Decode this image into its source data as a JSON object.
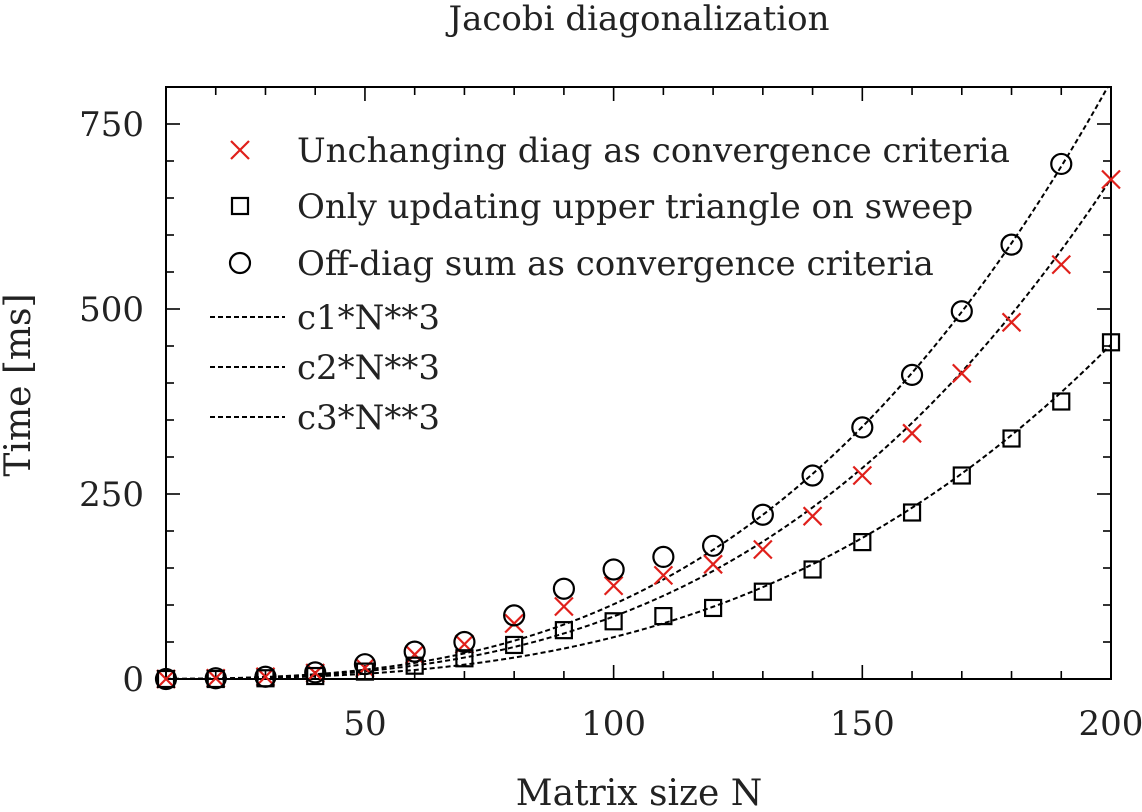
{
  "chart_data": {
    "type": "scatter",
    "title": "Jacobi diagonalization",
    "xlabel": "Matrix size N",
    "ylabel": "Time [ms]",
    "xlim": [
      10,
      200
    ],
    "ylim": [
      0,
      800
    ],
    "xticks": [
      "50",
      "100",
      "150",
      "200"
    ],
    "yticks": [
      "0",
      "250",
      "500",
      "750"
    ],
    "grid": false,
    "legend_position": "top-left",
    "series": [
      {
        "name": "Unchanging diag as convergence criteria",
        "marker": "x",
        "color": "#e0201b",
        "x": [
          10,
          20,
          30,
          40,
          50,
          60,
          70,
          80,
          90,
          100,
          110,
          120,
          130,
          140,
          150,
          160,
          170,
          180,
          190,
          200
        ],
        "y": [
          0,
          1,
          3,
          8,
          15,
          33,
          47,
          75,
          98,
          126,
          140,
          155,
          175,
          220,
          275,
          332,
          413,
          482,
          560,
          675
        ]
      },
      {
        "name": "Only updating upper triangle on sweep",
        "marker": "square",
        "color": "#000000",
        "x": [
          10,
          20,
          30,
          40,
          50,
          60,
          70,
          80,
          90,
          100,
          110,
          120,
          130,
          140,
          150,
          160,
          170,
          180,
          190,
          200
        ],
        "y": [
          0,
          0,
          1,
          4,
          10,
          18,
          28,
          46,
          66,
          78,
          85,
          96,
          118,
          148,
          185,
          225,
          275,
          325,
          375,
          455
        ]
      },
      {
        "name": "Off-diag sum as convergence criteria",
        "marker": "circle",
        "color": "#000000",
        "x": [
          10,
          20,
          30,
          40,
          50,
          60,
          70,
          80,
          90,
          100,
          110,
          120,
          130,
          140,
          150,
          160,
          170,
          180,
          190
        ],
        "y": [
          0,
          1,
          3,
          9,
          20,
          37,
          50,
          86,
          122,
          148,
          165,
          180,
          222,
          275,
          340,
          411,
          497,
          587,
          696
        ]
      }
    ],
    "fits": [
      {
        "name": "c1*N**3",
        "coef": 8.45e-05,
        "color": "#000000"
      },
      {
        "name": "c2*N**3",
        "coef": 5.65e-05,
        "color": "#000000"
      },
      {
        "name": "c3*N**3",
        "coef": 0.000101,
        "color": "#000000"
      }
    ]
  }
}
